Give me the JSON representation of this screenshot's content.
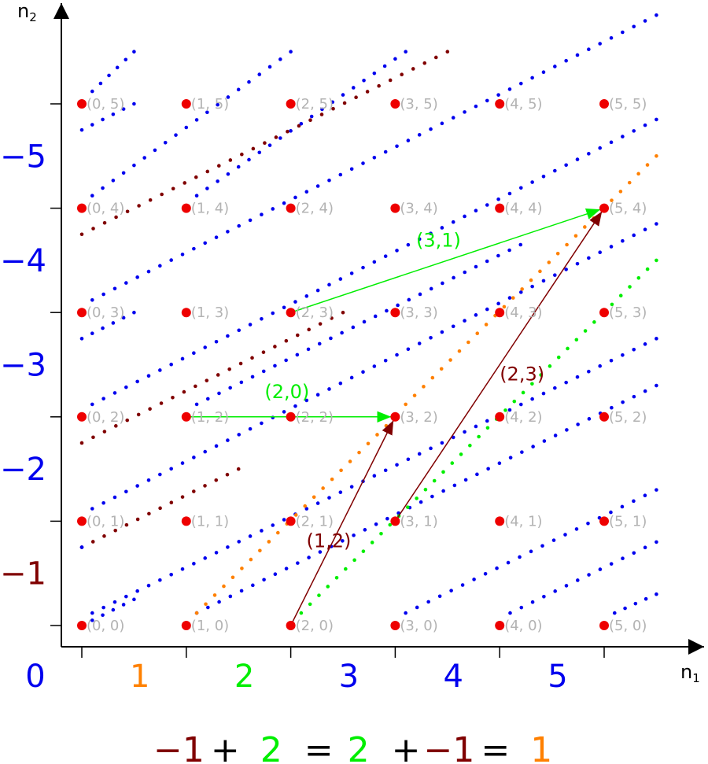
{
  "axes": {
    "x_label": "n",
    "x_sub": "1",
    "y_label": "n",
    "y_sub": "2"
  },
  "colors": {
    "blue": "#0000ee",
    "maroon": "#800000",
    "orange": "#ff8000",
    "green": "#00ee00",
    "red": "#ee0000",
    "label_gray": "#b3b3b3"
  },
  "grid": {
    "n1_max": 5,
    "n2_max": 5
  },
  "lattice_labels": [
    [
      "(0, 0)",
      "(1, 0)",
      "(2, 0)",
      "(3, 0)",
      "(4, 0)",
      "(5, 0)"
    ],
    [
      "(0, 1)",
      "(1, 1)",
      "(2, 1)",
      "(3, 1)",
      "(4, 1)",
      "(5, 1)"
    ],
    [
      "(0, 2)",
      "(1, 2)",
      "(2, 2)",
      "(3, 2)",
      "(4, 2)",
      "(5, 2)"
    ],
    [
      "(0, 3)",
      "(1, 3)",
      "(2, 3)",
      "(3, 3)",
      "(4, 3)",
      "(5, 3)"
    ],
    [
      "(0, 4)",
      "(1, 4)",
      "(2, 4)",
      "(3, 4)",
      "(4, 4)",
      "(5, 4)"
    ],
    [
      "(0, 5)",
      "(1, 5)",
      "(2, 5)",
      "(3, 5)",
      "(4, 5)",
      "(5, 5)"
    ]
  ],
  "dotted_lines": [
    {
      "from": [
        0,
        0
      ],
      "to": [
        0.5,
        0.25
      ],
      "color": "blue"
    },
    {
      "from": [
        0,
        0.75
      ],
      "to": [
        1.5,
        1.5
      ],
      "color": "maroon"
    },
    {
      "from": [
        0,
        1.75
      ],
      "to": [
        2.5,
        3
      ],
      "color": "maroon"
    },
    {
      "from": [
        0,
        3.75
      ],
      "to": [
        3.5,
        5.5
      ],
      "color": "maroon"
    },
    {
      "from": [
        0,
        2.75
      ],
      "to": [
        0.5,
        3.0
      ],
      "color": "blue"
    },
    {
      "from": [
        0,
        4.75
      ],
      "to": [
        0.5,
        5.0
      ],
      "color": "blue"
    },
    {
      "from": [
        0,
        0.75
      ],
      "to": [
        0.0,
        0.75
      ],
      "color": "blue"
    },
    {
      "from": [
        0.1,
        0.12
      ],
      "to": [
        5.5,
        2.75
      ],
      "color": "blue"
    },
    {
      "from": [
        0.1,
        1.12
      ],
      "to": [
        5.5,
        3.85
      ],
      "color": "blue"
    },
    {
      "from": [
        0.1,
        2.12
      ],
      "to": [
        5.5,
        4.85
      ],
      "color": "blue"
    },
    {
      "from": [
        0.1,
        3.12
      ],
      "to": [
        5.5,
        5.85
      ],
      "color": "blue"
    },
    {
      "from": [
        0.1,
        4.12
      ],
      "to": [
        2.0,
        5.5
      ],
      "color": "blue"
    },
    {
      "from": [
        0.1,
        5.12
      ],
      "to": [
        0.5,
        5.5
      ],
      "color": "blue"
    },
    {
      "from": [
        1.1,
        0.12
      ],
      "to": [
        5.5,
        2.3
      ],
      "color": "blue"
    },
    {
      "from": [
        1.1,
        2.12
      ],
      "to": [
        4.2,
        3.65
      ],
      "color": "blue"
    },
    {
      "from": [
        1.1,
        4.12
      ],
      "to": [
        3.1,
        5.5
      ],
      "color": "blue"
    },
    {
      "from": [
        3.1,
        0.12
      ],
      "to": [
        5.5,
        1.3
      ],
      "color": "blue"
    },
    {
      "from": [
        4.1,
        0.12
      ],
      "to": [
        5.5,
        0.8
      ],
      "color": "blue"
    },
    {
      "from": [
        5.1,
        0.12
      ],
      "to": [
        5.5,
        0.3
      ],
      "color": "blue"
    },
    {
      "from": [
        1.1,
        0.12
      ],
      "to": [
        3.0,
        2.0
      ],
      "color": "orange"
    },
    {
      "from": [
        3.1,
        2.12
      ],
      "to": [
        5.5,
        4.5
      ],
      "color": "orange"
    },
    {
      "from": [
        2.1,
        0.12
      ],
      "to": [
        5.5,
        3.5
      ],
      "color": "green"
    }
  ],
  "vectors": [
    {
      "from": [
        1,
        2
      ],
      "to": [
        3,
        2
      ],
      "label": "(2,0)",
      "color": "green",
      "label_at": [
        1.75,
        2.18
      ]
    },
    {
      "from": [
        2,
        3
      ],
      "to": [
        5,
        4
      ],
      "label": "(3,1)",
      "color": "green",
      "label_at": [
        3.2,
        3.63
      ]
    },
    {
      "from": [
        2,
        0
      ],
      "to": [
        3,
        2
      ],
      "label": "(1,2)",
      "color": "maroon",
      "label_at": [
        2.15,
        0.75
      ]
    },
    {
      "from": [
        3,
        1
      ],
      "to": [
        5,
        4
      ],
      "label": "(2,3)",
      "color": "maroon",
      "label_at": [
        4.0,
        2.35
      ]
    }
  ],
  "side_numbers": [
    {
      "value": "−5",
      "n2": 4.5,
      "color": "blue"
    },
    {
      "value": "−4",
      "n2": 3.5,
      "color": "blue"
    },
    {
      "value": "−3",
      "n2": 2.5,
      "color": "blue"
    },
    {
      "value": "−2",
      "n2": 1.5,
      "color": "blue"
    },
    {
      "value": "−1",
      "n2": 0.5,
      "color": "maroon"
    }
  ],
  "bottom_numbers": [
    {
      "value": "0",
      "n1": -0.45,
      "color": "blue"
    },
    {
      "value": "1",
      "n1": 0.55,
      "color": "orange"
    },
    {
      "value": "2",
      "n1": 1.55,
      "color": "green"
    },
    {
      "value": "3",
      "n1": 2.55,
      "color": "blue"
    },
    {
      "value": "4",
      "n1": 3.55,
      "color": "blue"
    },
    {
      "value": "5",
      "n1": 4.55,
      "color": "blue"
    }
  ],
  "equation": [
    {
      "text": "−1",
      "color": "maroon"
    },
    {
      "text": "+",
      "color": "black"
    },
    {
      "text": "2",
      "color": "green"
    },
    {
      "text": "=",
      "color": "black"
    },
    {
      "text": "2",
      "color": "green"
    },
    {
      "text": "+",
      "color": "black"
    },
    {
      "text": "−1",
      "color": "maroon"
    },
    {
      "text": "=",
      "color": "black"
    },
    {
      "text": "1",
      "color": "orange"
    }
  ]
}
